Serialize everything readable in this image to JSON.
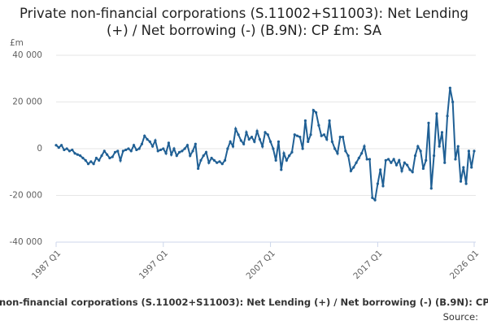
{
  "chart_data": {
    "type": "line",
    "title": "Private non-financial corporations (S.11002+S11003): Net Lending (+) / Net borrowing (-) (B.9N): CP £m: SA",
    "y_label": "£m",
    "source": "Source:",
    "categories": [
      "1987 Q1",
      null,
      null,
      null,
      null,
      null,
      null,
      null,
      null,
      null,
      null,
      null,
      null,
      null,
      null,
      null,
      null,
      null,
      null,
      null,
      null,
      null,
      null,
      null,
      null,
      null,
      null,
      null,
      null,
      null,
      null,
      null,
      null,
      null,
      null,
      null,
      null,
      null,
      null,
      null,
      "1997 Q1",
      null,
      null,
      null,
      null,
      null,
      null,
      null,
      null,
      null,
      null,
      null,
      null,
      null,
      null,
      null,
      null,
      null,
      null,
      null,
      null,
      null,
      null,
      null,
      null,
      null,
      null,
      null,
      null,
      null,
      null,
      null,
      null,
      null,
      null,
      null,
      null,
      null,
      null,
      null,
      "2007 Q1",
      null,
      null,
      null,
      null,
      null,
      null,
      null,
      null,
      null,
      null,
      null,
      null,
      null,
      null,
      null,
      null,
      null,
      null,
      null,
      null,
      null,
      null,
      null,
      null,
      null,
      null,
      null,
      null,
      null,
      null,
      null,
      null,
      null,
      null,
      null,
      null,
      null,
      null,
      null,
      "2017 Q1",
      null,
      null,
      null,
      null,
      null,
      null,
      null,
      null,
      null,
      null,
      null,
      null,
      null,
      null,
      null,
      null,
      null,
      null,
      null,
      null,
      null,
      null,
      null,
      null,
      null,
      null,
      null,
      null,
      null,
      null,
      null,
      null,
      null,
      null,
      null,
      "2026 Q1"
    ],
    "series": [
      {
        "name": "Private non-financial corporations (S.11002+S11003): Net Lending (+) / Net borrowing (-) (B.9N): CP £m: SA",
        "color": "#206095",
        "values": [
          1500,
          500,
          1500,
          -500,
          0,
          -1000,
          -500,
          -2000,
          -2500,
          -3000,
          -4000,
          -5000,
          -6500,
          -5500,
          -6500,
          -4000,
          -5000,
          -3000,
          -1000,
          -2500,
          -4000,
          -3500,
          -1500,
          -1000,
          -5000,
          -1000,
          -500,
          0,
          -1000,
          1500,
          -500,
          0,
          2000,
          5500,
          4000,
          3000,
          1000,
          3500,
          -1000,
          -500,
          0,
          -2000,
          2500,
          -2500,
          0,
          -3000,
          -1500,
          -1000,
          0,
          1500,
          -3000,
          -1000,
          2000,
          -8500,
          -5000,
          -3000,
          -1500,
          -6000,
          -4000,
          -5000,
          -6000,
          -5500,
          -6500,
          -5000,
          0,
          3000,
          1000,
          8500,
          6000,
          3500,
          2000,
          7000,
          4000,
          5000,
          3000,
          7500,
          4000,
          1000,
          7000,
          6000,
          3000,
          0,
          -5000,
          3000,
          -9000,
          -2000,
          -5000,
          -3000,
          -1500,
          6000,
          5500,
          5000,
          0,
          12000,
          3000,
          6000,
          16500,
          15500,
          10000,
          5500,
          6000,
          4000,
          12000,
          3000,
          0,
          -2000,
          5000,
          5000,
          -1000,
          -3000,
          -9500,
          -8000,
          -6000,
          -4000,
          -2000,
          1000,
          -4500,
          -4500,
          -21000,
          -22000,
          -15000,
          -9000,
          -16000,
          -5000,
          -4500,
          -6000,
          -4500,
          -7000,
          -5000,
          -9500,
          -6000,
          -7000,
          -9000,
          -10000,
          -3000,
          1000,
          -1000,
          -8500,
          -5000,
          11000,
          -17000,
          -3000,
          15000,
          1000,
          7000,
          -6000,
          14000,
          26000,
          20000,
          -4500,
          1000,
          -14000,
          -8000,
          -15000,
          -1000,
          -8000,
          -1000
        ]
      }
    ],
    "ylim": [
      -40000,
      40000
    ],
    "yticks": [
      {
        "value": -40000,
        "label": "-40 000"
      },
      {
        "value": -20000,
        "label": "-20 000"
      },
      0,
      {
        "value": 20000,
        "label": "20 000"
      },
      {
        "value": 40000,
        "label": "40 000"
      }
    ],
    "grid": true
  }
}
